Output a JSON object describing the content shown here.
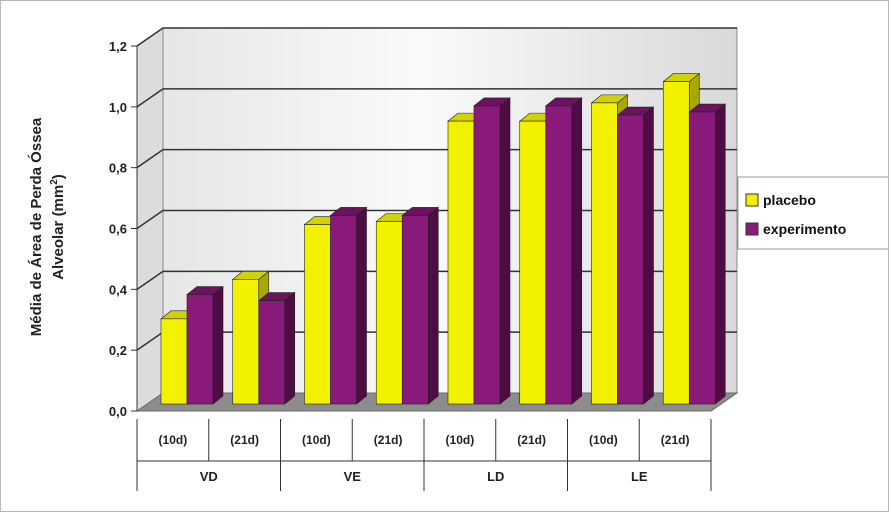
{
  "chart_data": {
    "type": "bar",
    "ylabel_line1": "Média de Área de Perda Óssea",
    "ylabel_line2": "Alveolar (mm",
    "ylabel_sup": "2",
    "ylabel_close": ")",
    "ylim": [
      0,
      1.2
    ],
    "yticks": [
      "0,0",
      "0,2",
      "0,4",
      "0,6",
      "0,8",
      "1,0",
      "1,2"
    ],
    "categories": [
      "(10d)",
      "(21d)",
      "(10d)",
      "(21d)",
      "(10d)",
      "(21d)",
      "(10d)",
      "(21d)"
    ],
    "groups": [
      "VD",
      "VE",
      "LD",
      "LE"
    ],
    "series": [
      {
        "name": "placebo",
        "color": "#f2f200",
        "side": "#a8a800",
        "top": "#d2d200",
        "values": [
          0.28,
          0.41,
          0.59,
          0.6,
          0.93,
          0.93,
          0.99,
          1.06
        ]
      },
      {
        "name": "experimento",
        "color": "#8a1a7a",
        "side": "#4e0b44",
        "top": "#6c1360",
        "values": [
          0.36,
          0.34,
          0.62,
          0.62,
          0.98,
          0.98,
          0.95,
          0.96
        ]
      }
    ],
    "grid": true,
    "legend_position": "right"
  }
}
